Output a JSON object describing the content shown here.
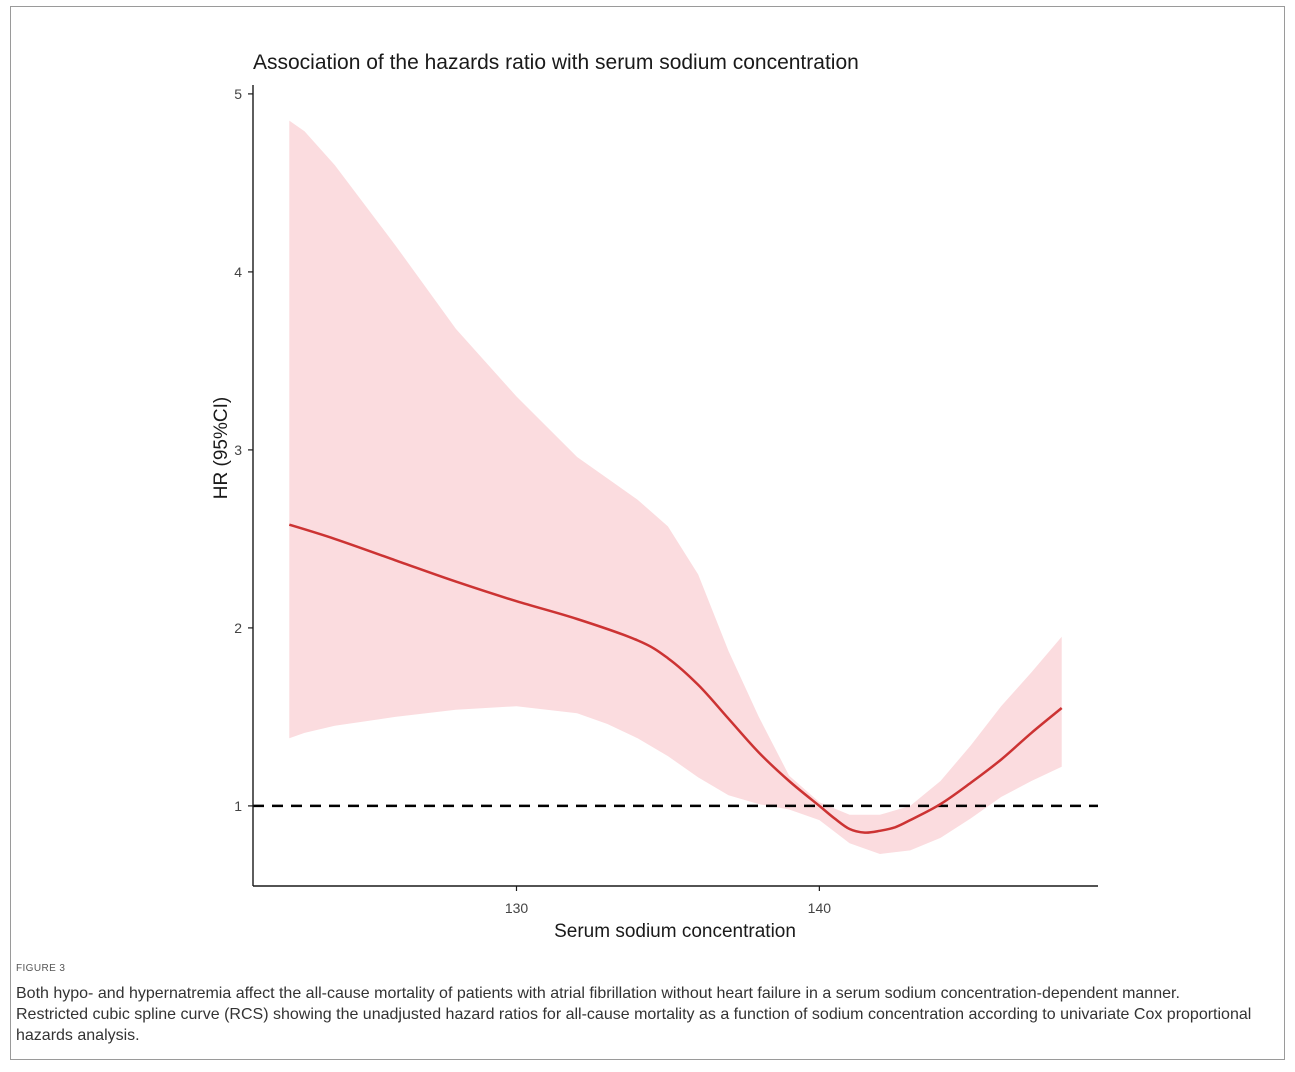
{
  "chart_data": {
    "type": "line",
    "title": "Association of the hazards ratio with serum sodium concentration",
    "xlabel": "Serum sodium concentration",
    "ylabel": "HR (95%CI)",
    "xlim": [
      121.3,
      149.2
    ],
    "ylim": [
      0.55,
      5.05
    ],
    "x_ticks": [
      130,
      140
    ],
    "y_ticks": [
      1,
      2,
      3,
      4,
      5
    ],
    "reference_line": {
      "y": 1,
      "style": "dashed",
      "color": "#000000"
    },
    "series": [
      {
        "type": "line",
        "color": "#cc3333",
        "x": [
          122.5,
          124,
          126,
          128,
          130,
          132,
          134,
          135,
          136,
          137,
          138,
          139,
          140,
          140.5,
          141,
          141.5,
          142,
          142.5,
          143,
          144,
          145,
          146,
          147,
          148
        ],
        "values": [
          2.58,
          2.5,
          2.38,
          2.26,
          2.15,
          2.05,
          1.93,
          1.83,
          1.68,
          1.49,
          1.3,
          1.14,
          1.0,
          0.93,
          0.87,
          0.85,
          0.86,
          0.88,
          0.92,
          1.01,
          1.13,
          1.26,
          1.41,
          1.55
        ]
      },
      {
        "type": "area",
        "role": "95% confidence interval",
        "color": "#fbdcdf",
        "x": [
          122.5,
          123,
          124,
          126,
          128,
          130,
          132,
          133,
          134,
          135,
          136,
          137,
          138,
          139,
          140,
          141,
          142,
          143,
          144,
          145,
          146,
          147,
          148
        ],
        "upper": [
          4.85,
          4.79,
          4.6,
          4.15,
          3.68,
          3.3,
          2.96,
          2.84,
          2.72,
          2.57,
          2.3,
          1.87,
          1.5,
          1.17,
          1.02,
          0.95,
          0.95,
          1.0,
          1.14,
          1.34,
          1.56,
          1.75,
          1.95
        ],
        "lower": [
          1.38,
          1.41,
          1.45,
          1.5,
          1.54,
          1.56,
          1.52,
          1.46,
          1.38,
          1.28,
          1.16,
          1.06,
          1.01,
          0.98,
          0.92,
          0.79,
          0.73,
          0.75,
          0.82,
          0.93,
          1.05,
          1.14,
          1.22
        ]
      }
    ]
  },
  "figure": {
    "label": "FIGURE 3",
    "caption": "Both hypo- and hypernatremia affect the all-cause mortality of patients with atrial fibrillation without heart failure in a serum sodium concentration-dependent manner. Restricted cubic spline curve (RCS) showing the unadjusted hazard ratios for all-cause mortality as a function of sodium concentration according to univariate Cox proportional hazards analysis."
  }
}
